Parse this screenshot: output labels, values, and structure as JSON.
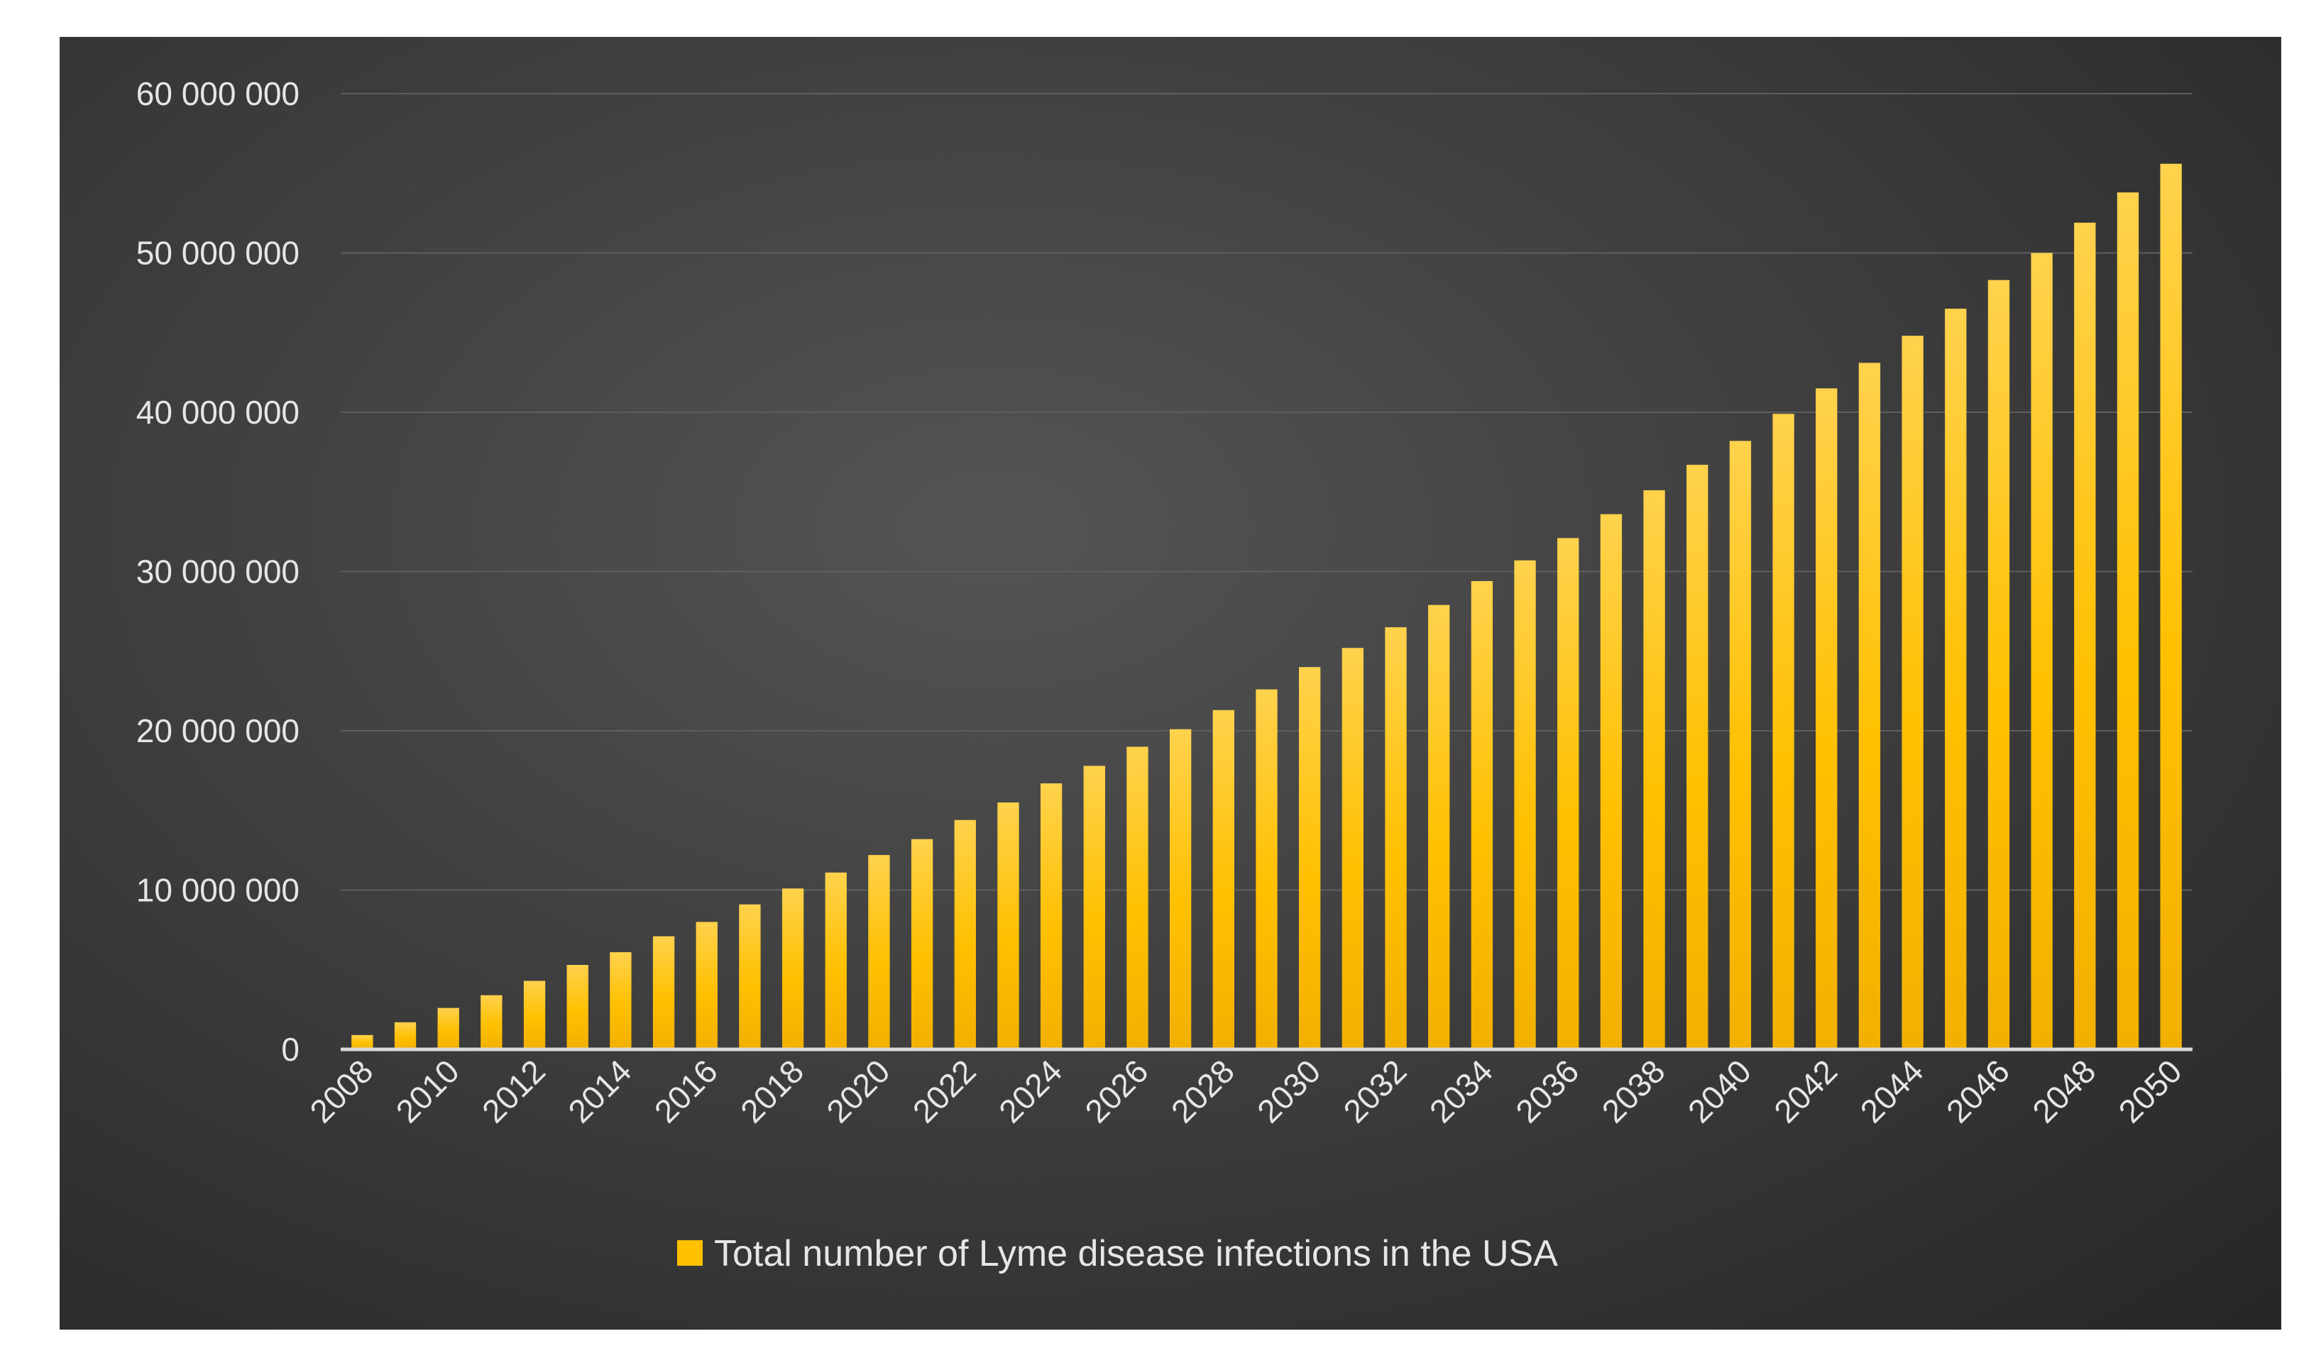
{
  "chart_data": {
    "type": "bar",
    "title": "",
    "xlabel": "",
    "ylabel": "",
    "ylim": [
      0,
      60000000
    ],
    "yticks": [
      0,
      10000000,
      20000000,
      30000000,
      40000000,
      50000000,
      60000000
    ],
    "ytick_labels": [
      "0",
      "10 000 000",
      "20 000 000",
      "30 000 000",
      "40 000 000",
      "50 000 000",
      "60 000 000"
    ],
    "categories": [
      "2008",
      "2009",
      "2010",
      "2011",
      "2012",
      "2013",
      "2014",
      "2015",
      "2016",
      "2017",
      "2018",
      "2019",
      "2020",
      "2021",
      "2022",
      "2023",
      "2024",
      "2025",
      "2026",
      "2027",
      "2028",
      "2029",
      "2030",
      "2031",
      "2032",
      "2033",
      "2034",
      "2035",
      "2036",
      "2037",
      "2038",
      "2039",
      "2040",
      "2041",
      "2042",
      "2043",
      "2044",
      "2045",
      "2046",
      "2047",
      "2048",
      "2049",
      "2050"
    ],
    "xtick_labels": [
      "2008",
      "2010",
      "2012",
      "2014",
      "2016",
      "2018",
      "2020",
      "2022",
      "2024",
      "2026",
      "2028",
      "2030",
      "2032",
      "2034",
      "2036",
      "2038",
      "2040",
      "2042",
      "2044",
      "2046",
      "2048",
      "2050"
    ],
    "series": [
      {
        "name": "Total number of Lyme disease infections in the USA",
        "color": "#FFC000",
        "values": [
          900000,
          1700000,
          2600000,
          3400000,
          4300000,
          5300000,
          6100000,
          7100000,
          8000000,
          9100000,
          10100000,
          11100000,
          12200000,
          13200000,
          14400000,
          15500000,
          16700000,
          17800000,
          19000000,
          20100000,
          21300000,
          22600000,
          24000000,
          25200000,
          26500000,
          27900000,
          29400000,
          30700000,
          32100000,
          33600000,
          35100000,
          36700000,
          38200000,
          39900000,
          41500000,
          43100000,
          44800000,
          46500000,
          48300000,
          50000000,
          51900000,
          53800000,
          55600000
        ]
      }
    ],
    "legend": {
      "position": "bottom",
      "label": "Total number of Lyme disease infections in the USA"
    },
    "grid": true
  }
}
